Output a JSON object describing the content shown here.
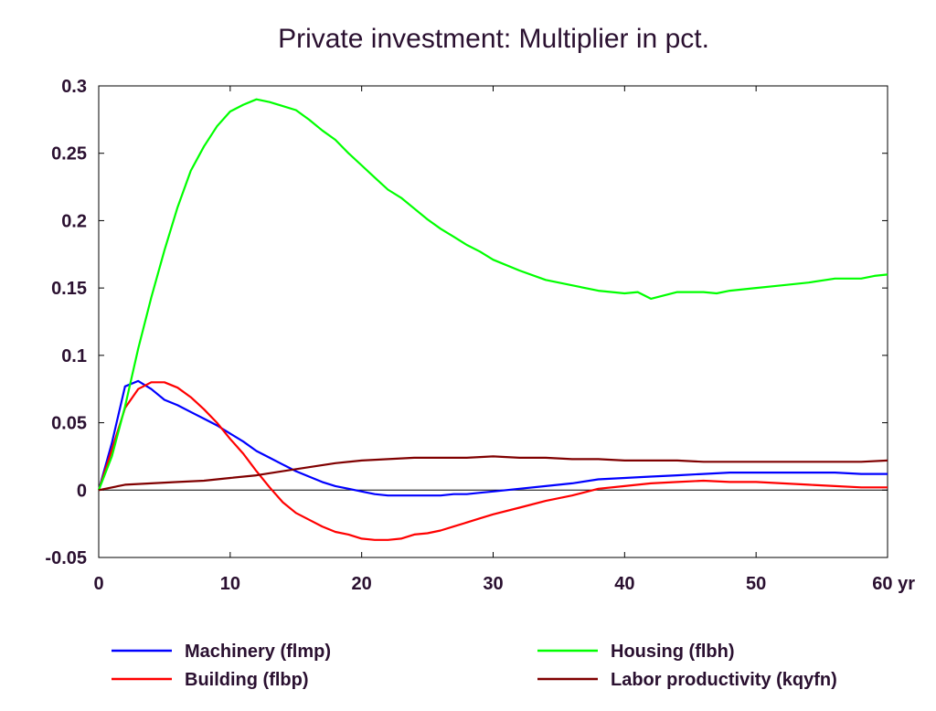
{
  "chart_data": {
    "type": "line",
    "title": "Private investment: Multiplier in pct.",
    "xlabel": "",
    "ylabel": "",
    "x_unit_label": "yr",
    "xlim": [
      0,
      60
    ],
    "ylim": [
      -0.05,
      0.3
    ],
    "x_ticks": [
      0,
      10,
      20,
      30,
      40,
      50,
      60
    ],
    "x_tick_labels": [
      "0",
      "10",
      "20",
      "30",
      "40",
      "50",
      "60 yr"
    ],
    "y_ticks": [
      -0.05,
      0,
      0.05,
      0.1,
      0.15,
      0.2,
      0.25,
      0.3
    ],
    "y_tick_labels": [
      "-0.05",
      "0",
      "0.05",
      "0.1",
      "0.15",
      "0.2",
      "0.25",
      "0.3"
    ],
    "grid": false,
    "legend_position": "bottom",
    "series": [
      {
        "name": "Machinery (flmp)",
        "color": "#0000ff",
        "points": [
          [
            0,
            0
          ],
          [
            1,
            0.035
          ],
          [
            2,
            0.077
          ],
          [
            3,
            0.081
          ],
          [
            4,
            0.075
          ],
          [
            5,
            0.067
          ],
          [
            6,
            0.063
          ],
          [
            7,
            0.058
          ],
          [
            8,
            0.053
          ],
          [
            9,
            0.048
          ],
          [
            10,
            0.042
          ],
          [
            11,
            0.036
          ],
          [
            12,
            0.029
          ],
          [
            13,
            0.024
          ],
          [
            14,
            0.019
          ],
          [
            15,
            0.014
          ],
          [
            16,
            0.01
          ],
          [
            17,
            0.006
          ],
          [
            18,
            0.003
          ],
          [
            19,
            0.001
          ],
          [
            20,
            -0.001
          ],
          [
            21,
            -0.003
          ],
          [
            22,
            -0.004
          ],
          [
            23,
            -0.004
          ],
          [
            24,
            -0.004
          ],
          [
            25,
            -0.004
          ],
          [
            26,
            -0.004
          ],
          [
            27,
            -0.003
          ],
          [
            28,
            -0.003
          ],
          [
            29,
            -0.002
          ],
          [
            30,
            -0.001
          ],
          [
            32,
            0.001
          ],
          [
            34,
            0.003
          ],
          [
            36,
            0.005
          ],
          [
            38,
            0.008
          ],
          [
            40,
            0.009
          ],
          [
            42,
            0.01
          ],
          [
            44,
            0.011
          ],
          [
            46,
            0.012
          ],
          [
            48,
            0.013
          ],
          [
            50,
            0.013
          ],
          [
            52,
            0.013
          ],
          [
            54,
            0.013
          ],
          [
            56,
            0.013
          ],
          [
            58,
            0.012
          ],
          [
            60,
            0.012
          ]
        ]
      },
      {
        "name": "Building (flbp)",
        "color": "#ff0000",
        "points": [
          [
            0,
            0
          ],
          [
            1,
            0.03
          ],
          [
            2,
            0.061
          ],
          [
            3,
            0.075
          ],
          [
            4,
            0.08
          ],
          [
            5,
            0.08
          ],
          [
            6,
            0.076
          ],
          [
            7,
            0.069
          ],
          [
            8,
            0.06
          ],
          [
            9,
            0.05
          ],
          [
            10,
            0.038
          ],
          [
            11,
            0.027
          ],
          [
            12,
            0.014
          ],
          [
            13,
            0.002
          ],
          [
            14,
            -0.009
          ],
          [
            15,
            -0.017
          ],
          [
            16,
            -0.022
          ],
          [
            17,
            -0.027
          ],
          [
            18,
            -0.031
          ],
          [
            19,
            -0.033
          ],
          [
            20,
            -0.036
          ],
          [
            21,
            -0.037
          ],
          [
            22,
            -0.037
          ],
          [
            23,
            -0.036
          ],
          [
            24,
            -0.033
          ],
          [
            25,
            -0.032
          ],
          [
            26,
            -0.03
          ],
          [
            27,
            -0.027
          ],
          [
            28,
            -0.024
          ],
          [
            29,
            -0.021
          ],
          [
            30,
            -0.018
          ],
          [
            32,
            -0.013
          ],
          [
            34,
            -0.008
          ],
          [
            36,
            -0.004
          ],
          [
            38,
            0.001
          ],
          [
            40,
            0.003
          ],
          [
            42,
            0.005
          ],
          [
            44,
            0.006
          ],
          [
            46,
            0.007
          ],
          [
            48,
            0.006
          ],
          [
            50,
            0.006
          ],
          [
            52,
            0.005
          ],
          [
            54,
            0.004
          ],
          [
            56,
            0.003
          ],
          [
            58,
            0.002
          ],
          [
            60,
            0.002
          ]
        ]
      },
      {
        "name": "Housing (flbh)",
        "color": "#00ff00",
        "points": [
          [
            0,
            0
          ],
          [
            1,
            0.025
          ],
          [
            2,
            0.062
          ],
          [
            3,
            0.105
          ],
          [
            4,
            0.143
          ],
          [
            5,
            0.178
          ],
          [
            6,
            0.21
          ],
          [
            7,
            0.237
          ],
          [
            8,
            0.255
          ],
          [
            9,
            0.27
          ],
          [
            10,
            0.281
          ],
          [
            11,
            0.286
          ],
          [
            12,
            0.29
          ],
          [
            13,
            0.288
          ],
          [
            14,
            0.285
          ],
          [
            15,
            0.282
          ],
          [
            16,
            0.275
          ],
          [
            17,
            0.267
          ],
          [
            18,
            0.26
          ],
          [
            19,
            0.25
          ],
          [
            20,
            0.241
          ],
          [
            21,
            0.232
          ],
          [
            22,
            0.223
          ],
          [
            23,
            0.217
          ],
          [
            24,
            0.209
          ],
          [
            25,
            0.201
          ],
          [
            26,
            0.194
          ],
          [
            27,
            0.188
          ],
          [
            28,
            0.182
          ],
          [
            29,
            0.177
          ],
          [
            30,
            0.171
          ],
          [
            32,
            0.163
          ],
          [
            34,
            0.156
          ],
          [
            36,
            0.152
          ],
          [
            38,
            0.148
          ],
          [
            40,
            0.146
          ],
          [
            41,
            0.147
          ],
          [
            42,
            0.142
          ],
          [
            44,
            0.147
          ],
          [
            46,
            0.147
          ],
          [
            47,
            0.146
          ],
          [
            48,
            0.148
          ],
          [
            50,
            0.15
          ],
          [
            52,
            0.152
          ],
          [
            54,
            0.154
          ],
          [
            56,
            0.157
          ],
          [
            58,
            0.157
          ],
          [
            59,
            0.159
          ],
          [
            60,
            0.16
          ]
        ]
      },
      {
        "name": "Labor productivity (kqyfn)",
        "color": "#800000",
        "points": [
          [
            0,
            0
          ],
          [
            2,
            0.004
          ],
          [
            4,
            0.005
          ],
          [
            6,
            0.006
          ],
          [
            8,
            0.007
          ],
          [
            10,
            0.009
          ],
          [
            12,
            0.011
          ],
          [
            14,
            0.014
          ],
          [
            16,
            0.017
          ],
          [
            18,
            0.02
          ],
          [
            20,
            0.022
          ],
          [
            22,
            0.023
          ],
          [
            24,
            0.024
          ],
          [
            26,
            0.024
          ],
          [
            28,
            0.024
          ],
          [
            30,
            0.025
          ],
          [
            32,
            0.024
          ],
          [
            34,
            0.024
          ],
          [
            36,
            0.023
          ],
          [
            38,
            0.023
          ],
          [
            40,
            0.022
          ],
          [
            42,
            0.022
          ],
          [
            44,
            0.022
          ],
          [
            46,
            0.021
          ],
          [
            48,
            0.021
          ],
          [
            50,
            0.021
          ],
          [
            52,
            0.021
          ],
          [
            54,
            0.021
          ],
          [
            56,
            0.021
          ],
          [
            58,
            0.021
          ],
          [
            60,
            0.022
          ]
        ]
      }
    ]
  }
}
